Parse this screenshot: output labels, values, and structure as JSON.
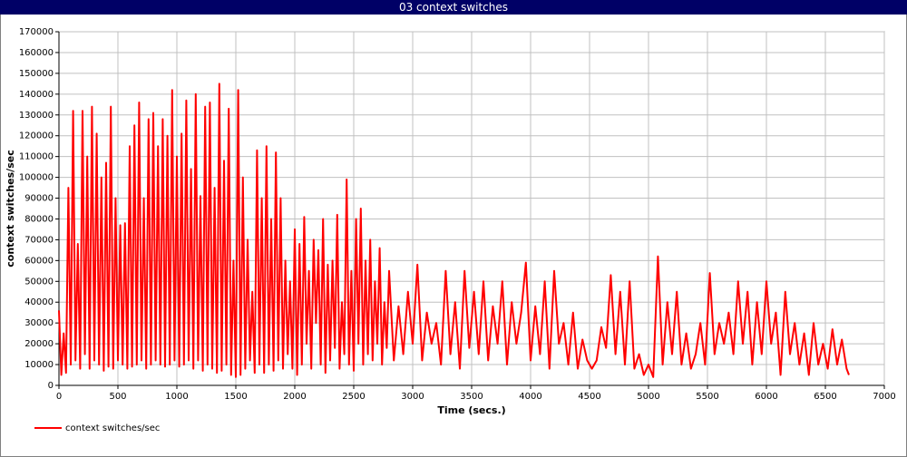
{
  "chart_data": {
    "type": "line",
    "title": "03 context switches",
    "xlabel": "Time (secs.)",
    "ylabel": "context switches/sec",
    "xlim": [
      0,
      7000
    ],
    "ylim": [
      0,
      170000
    ],
    "xticks": [
      0,
      500,
      1000,
      1500,
      2000,
      2500,
      3000,
      3500,
      4000,
      4500,
      5000,
      5500,
      6000,
      6500,
      7000
    ],
    "yticks": [
      0,
      10000,
      20000,
      30000,
      40000,
      50000,
      60000,
      70000,
      80000,
      90000,
      100000,
      110000,
      120000,
      130000,
      140000,
      150000,
      160000,
      170000
    ],
    "grid": true,
    "legend": "bottom-left",
    "x": [
      0,
      20,
      40,
      60,
      80,
      100,
      120,
      140,
      160,
      180,
      200,
      220,
      240,
      260,
      280,
      300,
      320,
      340,
      360,
      380,
      400,
      420,
      440,
      460,
      480,
      500,
      520,
      540,
      560,
      580,
      600,
      620,
      640,
      660,
      680,
      700,
      720,
      740,
      760,
      780,
      800,
      820,
      840,
      860,
      880,
      900,
      920,
      940,
      960,
      980,
      1000,
      1020,
      1040,
      1060,
      1080,
      1100,
      1120,
      1140,
      1160,
      1180,
      1200,
      1220,
      1240,
      1260,
      1280,
      1300,
      1320,
      1340,
      1360,
      1380,
      1400,
      1420,
      1440,
      1460,
      1480,
      1500,
      1520,
      1540,
      1560,
      1580,
      1600,
      1620,
      1640,
      1660,
      1680,
      1700,
      1720,
      1740,
      1760,
      1780,
      1800,
      1820,
      1840,
      1860,
      1880,
      1900,
      1920,
      1940,
      1960,
      1980,
      2000,
      2020,
      2040,
      2060,
      2080,
      2100,
      2120,
      2140,
      2160,
      2180,
      2200,
      2220,
      2240,
      2260,
      2280,
      2300,
      2320,
      2340,
      2360,
      2380,
      2400,
      2420,
      2440,
      2460,
      2480,
      2500,
      2520,
      2540,
      2560,
      2580,
      2600,
      2620,
      2640,
      2660,
      2680,
      2700,
      2720,
      2740,
      2760,
      2780,
      2800,
      2840,
      2880,
      2920,
      2960,
      3000,
      3040,
      3080,
      3120,
      3160,
      3200,
      3240,
      3280,
      3320,
      3360,
      3400,
      3440,
      3480,
      3520,
      3560,
      3600,
      3640,
      3680,
      3720,
      3760,
      3800,
      3840,
      3880,
      3920,
      3960,
      4000,
      4040,
      4080,
      4120,
      4160,
      4200,
      4240,
      4280,
      4320,
      4360,
      4400,
      4440,
      4480,
      4520,
      4560,
      4600,
      4640,
      4680,
      4720,
      4760,
      4800,
      4840,
      4880,
      4920,
      4960,
      5000,
      5040,
      5080,
      5120,
      5160,
      5200,
      5240,
      5280,
      5320,
      5360,
      5400,
      5440,
      5480,
      5520,
      5560,
      5600,
      5640,
      5680,
      5720,
      5760,
      5800,
      5840,
      5880,
      5920,
      5960,
      6000,
      6040,
      6080,
      6120,
      6160,
      6200,
      6240,
      6280,
      6320,
      6360,
      6400,
      6440,
      6480,
      6520,
      6560,
      6600,
      6640,
      6680,
      6700
    ],
    "series": [
      {
        "name": "context switches/sec",
        "color": "#ff0000",
        "values": [
          36000,
          5000,
          25000,
          6000,
          95000,
          10000,
          132000,
          12000,
          68000,
          8000,
          132000,
          15000,
          110000,
          8000,
          134000,
          12000,
          121000,
          10000,
          100000,
          7000,
          107000,
          9000,
          134000,
          8000,
          90000,
          12000,
          77000,
          10000,
          78000,
          8000,
          115000,
          9000,
          125000,
          10000,
          136000,
          12000,
          90000,
          8000,
          128000,
          10000,
          131000,
          12000,
          115000,
          10000,
          128000,
          9000,
          120000,
          10000,
          142000,
          12000,
          110000,
          9000,
          121000,
          10000,
          137000,
          12000,
          104000,
          8000,
          140000,
          12000,
          91000,
          7000,
          134000,
          10000,
          136000,
          8000,
          95000,
          6000,
          145000,
          7000,
          108000,
          10000,
          133000,
          5000,
          60000,
          4000,
          142000,
          5000,
          100000,
          8000,
          70000,
          12000,
          45000,
          6000,
          113000,
          10000,
          90000,
          6000,
          115000,
          10000,
          80000,
          7000,
          112000,
          12000,
          90000,
          8000,
          60000,
          15000,
          50000,
          8000,
          75000,
          5000,
          68000,
          10000,
          81000,
          20000,
          55000,
          8000,
          70000,
          30000,
          65000,
          10000,
          80000,
          6000,
          58000,
          12000,
          60000,
          18000,
          82000,
          8000,
          40000,
          15000,
          99000,
          10000,
          55000,
          7000,
          80000,
          20000,
          85000,
          10000,
          60000,
          15000,
          70000,
          12000,
          50000,
          20000,
          66000,
          10000,
          40000,
          18000,
          55000,
          12000,
          38000,
          15000,
          45000,
          20000,
          58000,
          12000,
          35000,
          20000,
          30000,
          10000,
          55000,
          15000,
          40000,
          8000,
          55000,
          18000,
          45000,
          15000,
          50000,
          12000,
          38000,
          20000,
          50000,
          10000,
          40000,
          20000,
          35000,
          59000,
          12000,
          38000,
          15000,
          50000,
          8000,
          55000,
          20000,
          30000,
          10000,
          35000,
          8000,
          22000,
          12000,
          8000,
          12000,
          28000,
          18000,
          53000,
          15000,
          45000,
          10000,
          50000,
          8000,
          15000,
          5000,
          10000,
          4000,
          62000,
          10000,
          40000,
          15000,
          45000,
          10000,
          25000,
          8000,
          15000,
          30000,
          10000,
          54000,
          15000,
          30000,
          20000,
          35000,
          15000,
          50000,
          20000,
          45000,
          10000,
          40000,
          15000,
          50000,
          20000,
          35000,
          5000,
          45000,
          15000,
          30000,
          10000,
          25000,
          5000,
          30000,
          10000,
          20000,
          8000,
          27000,
          10000,
          22000,
          8000,
          5000
        ]
      }
    ]
  }
}
